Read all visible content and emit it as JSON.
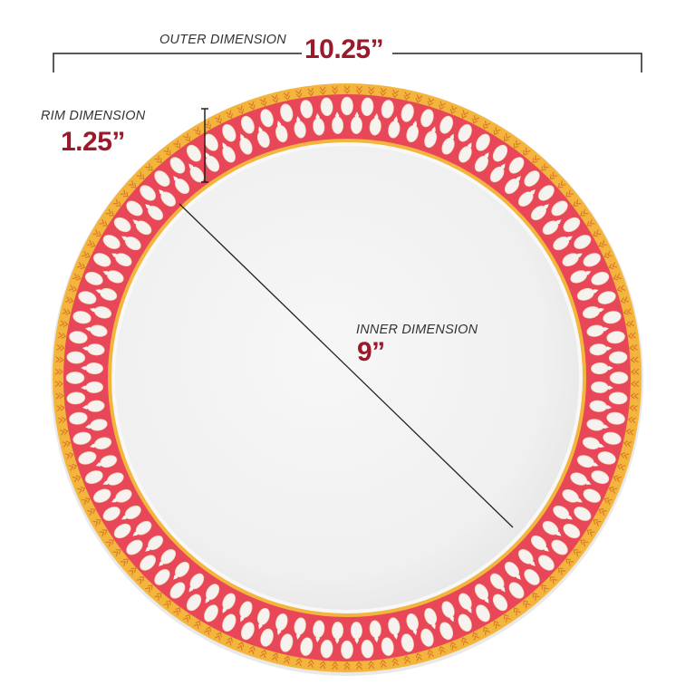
{
  "annotations": {
    "outer": {
      "label": "OUTER DIMENSION",
      "value": "10.25”"
    },
    "rim": {
      "label": "RIM DIMENSION",
      "value": "1.25”"
    },
    "inner": {
      "label": "INNER DIMENSION",
      "value": "9”"
    }
  },
  "colors": {
    "accent_text": "#9a1a2b",
    "gold": "#f2b43a",
    "red": "#e8475a",
    "plate": "#f4f4f4"
  }
}
